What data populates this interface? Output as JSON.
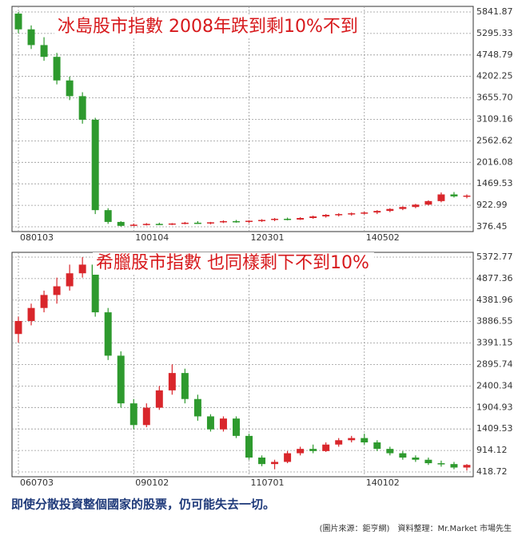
{
  "chart_data": [
    {
      "type": "candlestick",
      "title": "冰島股市指數  2008年跌到剩10%不到",
      "categories": [
        "080103",
        null,
        null,
        null,
        null,
        null,
        null,
        null,
        null,
        "100104",
        null,
        null,
        null,
        null,
        null,
        null,
        null,
        null,
        "120301",
        null,
        null,
        null,
        null,
        null,
        null,
        null,
        null,
        "140502",
        null,
        null,
        null,
        null,
        null,
        null,
        null,
        null
      ],
      "open": [
        5800,
        5400,
        5000,
        4700,
        4100,
        3700,
        3100,
        800,
        500,
        400,
        430,
        450,
        440,
        460,
        480,
        470,
        490,
        520,
        500,
        530,
        550,
        580,
        560,
        600,
        640,
        680,
        700,
        720,
        740,
        780,
        830,
        880,
        940,
        1030,
        1200,
        1150
      ],
      "high": [
        5842,
        5500,
        5200,
        4800,
        4200,
        3800,
        3150,
        850,
        520,
        460,
        470,
        480,
        470,
        500,
        520,
        500,
        540,
        550,
        540,
        570,
        600,
        610,
        620,
        660,
        700,
        720,
        740,
        760,
        800,
        850,
        900,
        960,
        1050,
        1250,
        1260,
        1200
      ],
      "low": [
        5300,
        4900,
        4600,
        4000,
        3600,
        3000,
        700,
        450,
        380,
        390,
        410,
        420,
        420,
        440,
        450,
        440,
        470,
        480,
        470,
        500,
        520,
        540,
        550,
        580,
        610,
        640,
        660,
        690,
        700,
        750,
        800,
        850,
        920,
        1000,
        1120,
        1100
      ],
      "close": [
        5400,
        5000,
        4700,
        4100,
        3700,
        3100,
        800,
        500,
        400,
        430,
        450,
        440,
        460,
        480,
        470,
        490,
        520,
        500,
        530,
        550,
        580,
        560,
        600,
        640,
        680,
        700,
        720,
        740,
        780,
        830,
        880,
        940,
        1030,
        1200,
        1150,
        1170
      ],
      "up_color": "#d9262b",
      "down_color": "#2e9a2e",
      "ylim": [
        376.45,
        5841.87
      ],
      "yticks": [
        5841.87,
        5295.33,
        4748.79,
        4202.25,
        {
          "value": 3655.7,
          "label": "3655.70"
        },
        3109.16,
        2562.62,
        2016.08,
        1469.53,
        922.99,
        376.45
      ],
      "grid": true
    },
    {
      "type": "candlestick",
      "title": "希臘股市指數 也同樣剩下不到10%",
      "categories": [
        "060703",
        null,
        null,
        null,
        null,
        null,
        null,
        null,
        null,
        "090102",
        null,
        null,
        null,
        null,
        null,
        null,
        null,
        null,
        "110701",
        null,
        null,
        null,
        null,
        null,
        null,
        null,
        null,
        "140102",
        null,
        null,
        null,
        null,
        null,
        null,
        null,
        null
      ],
      "open": [
        3600,
        3900,
        4200,
        4500,
        4700,
        5000,
        5200,
        4100,
        3100,
        2000,
        1500,
        1900,
        2300,
        2700,
        2100,
        1700,
        1400,
        1650,
        1250,
        750,
        600,
        650,
        850,
        950,
        900,
        1050,
        1150,
        1200,
        1100,
        950,
        850,
        750,
        700,
        620,
        600,
        520
      ],
      "high": [
        4000,
        4300,
        4600,
        4900,
        5200,
        5373,
        5300,
        4200,
        3200,
        2100,
        2000,
        2400,
        2900,
        2800,
        2200,
        1750,
        1700,
        1700,
        1300,
        800,
        700,
        900,
        1000,
        1050,
        1100,
        1200,
        1250,
        1300,
        1150,
        1000,
        900,
        800,
        750,
        680,
        650,
        600
      ],
      "low": [
        3400,
        3800,
        4100,
        4300,
        4600,
        4900,
        4000,
        3000,
        1900,
        1400,
        1450,
        1850,
        2200,
        2000,
        1600,
        1350,
        1350,
        1200,
        700,
        550,
        480,
        620,
        800,
        850,
        880,
        1000,
        1100,
        1050,
        900,
        800,
        700,
        650,
        580,
        540,
        480,
        450
      ],
      "close": [
        3900,
        4200,
        4500,
        4700,
        5000,
        5200,
        4100,
        3100,
        2000,
        1500,
        1900,
        2300,
        2700,
        2100,
        1700,
        1400,
        1650,
        1250,
        750,
        600,
        650,
        850,
        950,
        900,
        1050,
        1150,
        1200,
        1100,
        950,
        850,
        750,
        700,
        620,
        600,
        520,
        580
      ],
      "up_color": "#d9262b",
      "down_color": "#2e9a2e",
      "ylim": [
        418.72,
        5372.77
      ],
      "yticks": [
        5372.77,
        4877.36,
        4381.96,
        3886.55,
        3391.15,
        2895.74,
        2400.34,
        1904.93,
        1409.53,
        914.12,
        418.72
      ],
      "grid": true
    }
  ],
  "caption": "即使分散投資整個國家的股票，仍可能失去一切。",
  "source": "(圖片來源：鉅亨網)　資料整理：Mr.Market 市場先生"
}
